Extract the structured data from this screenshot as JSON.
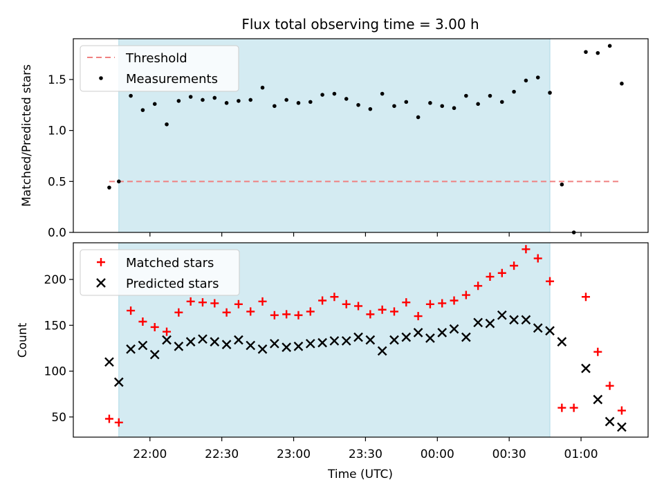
{
  "chart_data": [
    {
      "type": "scatter",
      "title": "Flux total observing time = 3.00 h",
      "xlabel": "",
      "ylabel": "Matched/Predicted stars",
      "ylim": [
        0,
        1.9
      ],
      "yticks": [
        "0.0",
        "0.5",
        "1.0",
        "1.5"
      ],
      "xlim": [
        "21:28",
        "01:28"
      ],
      "grid": false,
      "legend_position": "top-left",
      "shaded_region": {
        "x_start": "21:47",
        "x_end": "00:47",
        "color": "#d4ebf2"
      },
      "threshold": {
        "name": "Threshold",
        "y": 0.5,
        "x_start": "21:43",
        "x_end": "01:17",
        "color": "#f08080"
      },
      "series": [
        {
          "name": "Measurements",
          "color": "#000000",
          "marker": "dot",
          "x": [
            "21:43",
            "21:47",
            "21:52",
            "21:57",
            "22:02",
            "22:07",
            "22:12",
            "22:17",
            "22:22",
            "22:27",
            "22:32",
            "22:37",
            "22:42",
            "22:47",
            "22:52",
            "22:57",
            "23:02",
            "23:07",
            "23:12",
            "23:17",
            "23:22",
            "23:27",
            "23:32",
            "23:37",
            "23:42",
            "23:47",
            "23:52",
            "23:57",
            "00:02",
            "00:07",
            "00:12",
            "00:17",
            "00:22",
            "00:27",
            "00:32",
            "00:37",
            "00:42",
            "00:47",
            "00:52",
            "00:57",
            "01:02",
            "01:07",
            "01:12",
            "01:17"
          ],
          "y": [
            0.44,
            0.5,
            1.34,
            1.2,
            1.26,
            1.06,
            1.29,
            1.33,
            1.3,
            1.32,
            1.27,
            1.29,
            1.3,
            1.42,
            1.24,
            1.3,
            1.27,
            1.28,
            1.35,
            1.36,
            1.31,
            1.25,
            1.21,
            1.36,
            1.24,
            1.28,
            1.13,
            1.27,
            1.24,
            1.22,
            1.34,
            1.26,
            1.34,
            1.28,
            1.38,
            1.49,
            1.52,
            1.37,
            0.47,
            0.0,
            1.77,
            1.76,
            1.83,
            1.46
          ]
        }
      ]
    },
    {
      "type": "scatter",
      "title": "",
      "xlabel": "Time (UTC)",
      "ylabel": "Count",
      "ylim": [
        28,
        240
      ],
      "yticks": [
        "50",
        "100",
        "150",
        "200"
      ],
      "xlim": [
        "21:28",
        "01:28"
      ],
      "xticks": [
        "22:00",
        "22:30",
        "23:00",
        "23:30",
        "00:00",
        "00:30",
        "01:00"
      ],
      "grid": false,
      "legend_position": "top-left",
      "shaded_region": {
        "x_start": "21:47",
        "x_end": "00:47",
        "color": "#d4ebf2"
      },
      "x": [
        "21:43",
        "21:47",
        "21:52",
        "21:57",
        "22:02",
        "22:07",
        "22:12",
        "22:17",
        "22:22",
        "22:27",
        "22:32",
        "22:37",
        "22:42",
        "22:47",
        "22:52",
        "22:57",
        "23:02",
        "23:07",
        "23:12",
        "23:17",
        "23:22",
        "23:27",
        "23:32",
        "23:37",
        "23:42",
        "23:47",
        "23:52",
        "23:57",
        "00:02",
        "00:07",
        "00:12",
        "00:17",
        "00:22",
        "00:27",
        "00:32",
        "00:37",
        "00:42",
        "00:47",
        "00:52",
        "00:57",
        "01:02",
        "01:07",
        "01:12",
        "01:17"
      ],
      "series": [
        {
          "name": "Matched stars",
          "color": "#ff0000",
          "marker": "plus",
          "values": [
            48,
            44,
            166,
            154,
            148,
            143,
            164,
            176,
            175,
            174,
            164,
            173,
            165,
            176,
            161,
            162,
            161,
            165,
            177,
            181,
            173,
            171,
            162,
            167,
            165,
            175,
            160,
            173,
            174,
            177,
            183,
            193,
            203,
            207,
            215,
            233,
            223,
            198,
            60,
            60,
            181,
            121,
            84,
            57
          ]
        },
        {
          "name": "Predicted stars",
          "color": "#000000",
          "marker": "x",
          "values": [
            110,
            88,
            124,
            128,
            118,
            134,
            127,
            132,
            135,
            132,
            129,
            134,
            128,
            124,
            130,
            126,
            127,
            130,
            131,
            133,
            133,
            137,
            134,
            122,
            134,
            137,
            142,
            136,
            142,
            146,
            137,
            153,
            152,
            161,
            156,
            156,
            147,
            144,
            132,
            null,
            103,
            69,
            45,
            39
          ]
        }
      ]
    }
  ]
}
